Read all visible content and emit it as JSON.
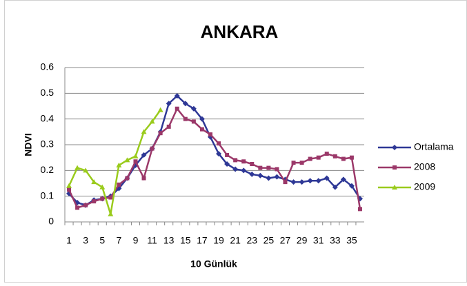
{
  "chart_data": {
    "type": "line",
    "title": "ANKARA",
    "x_label": "10 Günlük",
    "y_label": "NDVI",
    "categories": [
      1,
      null,
      3,
      null,
      5,
      null,
      7,
      null,
      9,
      null,
      11,
      null,
      13,
      null,
      15,
      null,
      17,
      null,
      19,
      null,
      21,
      null,
      23,
      null,
      25,
      null,
      27,
      null,
      29,
      null,
      31,
      null,
      33,
      null,
      35,
      null
    ],
    "series": [
      {
        "name": "Ortalama",
        "color": "#2e3896",
        "marker": "diamond",
        "values": [
          0.11,
          0.075,
          0.065,
          0.085,
          0.09,
          0.1,
          0.13,
          0.17,
          0.22,
          0.26,
          0.285,
          0.35,
          0.46,
          0.49,
          0.46,
          0.44,
          0.4,
          0.33,
          0.265,
          0.225,
          0.205,
          0.2,
          0.185,
          0.18,
          0.17,
          0.175,
          0.165,
          0.155,
          0.155,
          0.16,
          0.16,
          0.17,
          0.135,
          0.165,
          0.14,
          0.09
        ]
      },
      {
        "name": "2008",
        "color": "#9b3869",
        "marker": "square",
        "values": [
          0.125,
          0.055,
          0.065,
          0.08,
          0.09,
          0.095,
          0.145,
          0.17,
          0.235,
          0.17,
          0.285,
          0.345,
          0.37,
          0.44,
          0.4,
          0.39,
          0.36,
          0.34,
          0.305,
          0.26,
          0.24,
          0.235,
          0.225,
          0.21,
          0.21,
          0.205,
          0.155,
          0.23,
          0.23,
          0.245,
          0.25,
          0.265,
          0.255,
          0.245,
          0.25,
          0.05
        ]
      },
      {
        "name": "2009",
        "color": "#9acb1c",
        "marker": "triangle",
        "values": [
          0.14,
          0.21,
          0.2,
          0.155,
          0.135,
          0.03,
          0.22,
          0.24,
          0.255,
          0.35,
          0.39,
          0.435,
          null,
          null,
          null,
          null,
          null,
          null,
          null,
          null,
          null,
          null,
          null,
          null,
          null,
          null,
          null,
          null,
          null,
          null,
          null,
          null,
          null,
          null,
          null,
          null
        ]
      }
    ],
    "ylim": [
      0,
      0.6
    ],
    "yticks": [
      0,
      0.1,
      0.2,
      0.3,
      0.4,
      0.5,
      0.6
    ],
    "grid": true,
    "legend": "right"
  }
}
